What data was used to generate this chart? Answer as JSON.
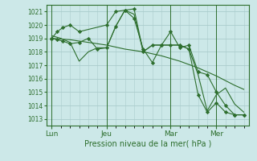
{
  "bg_color": "#cce8e8",
  "grid_color": "#aacccc",
  "line_color": "#2d6e2d",
  "marker_color": "#2d6e2d",
  "xlabel_text": "Pression niveau de la mer( hPa )",
  "ylim": [
    1012.5,
    1021.5
  ],
  "yticks": [
    1013,
    1014,
    1015,
    1016,
    1017,
    1018,
    1019,
    1020,
    1021
  ],
  "day_labels": [
    "Lun",
    "Jeu",
    "Mar",
    "Mer"
  ],
  "day_positions": [
    0.0,
    3.0,
    6.5,
    9.0
  ],
  "xlim": [
    -0.3,
    10.8
  ],
  "series": [
    {
      "x": [
        0.0,
        0.3,
        0.6,
        1.0,
        1.5,
        3.0,
        3.5,
        4.0,
        4.5,
        5.0,
        5.5,
        6.0,
        6.5,
        7.0,
        7.5,
        8.0,
        8.5,
        9.0,
        9.5,
        10.0,
        10.5
      ],
      "y": [
        1019.0,
        1019.5,
        1019.8,
        1020.0,
        1019.5,
        1020.0,
        1021.0,
        1021.1,
        1020.5,
        1018.2,
        1017.2,
        1018.5,
        1019.5,
        1018.3,
        1018.5,
        1016.5,
        1016.3,
        1015.0,
        1014.0,
        1013.3,
        1013.3
      ],
      "has_markers": true
    },
    {
      "x": [
        0.0,
        0.3,
        0.6,
        1.0,
        1.5,
        2.0,
        2.5,
        3.0,
        3.5,
        4.0,
        4.5,
        5.0,
        5.5,
        6.0,
        6.5,
        7.0,
        7.5,
        8.0,
        8.5,
        9.0,
        9.5,
        10.0,
        10.5
      ],
      "y": [
        1019.0,
        1018.9,
        1018.8,
        1018.6,
        1018.7,
        1019.0,
        1018.2,
        1018.3,
        1019.9,
        1021.1,
        1021.2,
        1018.0,
        1018.5,
        1018.5,
        1018.5,
        1018.5,
        1018.2,
        1014.8,
        1013.5,
        1014.2,
        1013.5,
        1013.3,
        1013.3
      ],
      "has_markers": true
    },
    {
      "x": [
        0.0,
        1.0,
        2.0,
        3.0,
        4.0,
        5.0,
        6.0,
        7.0,
        8.0,
        9.0,
        10.0,
        10.5
      ],
      "y": [
        1019.0,
        1018.9,
        1018.7,
        1018.5,
        1018.2,
        1018.0,
        1017.7,
        1017.3,
        1016.8,
        1016.2,
        1015.5,
        1015.2
      ],
      "has_markers": false
    },
    {
      "x": [
        0.0,
        0.5,
        1.0,
        1.5,
        2.0,
        2.5,
        3.0,
        3.5,
        4.0,
        4.5,
        5.0,
        5.5,
        6.0,
        6.5,
        7.0,
        7.5,
        8.0,
        8.5,
        9.0,
        9.5,
        10.0,
        10.5
      ],
      "y": [
        1019.2,
        1019.0,
        1018.7,
        1017.3,
        1018.0,
        1018.3,
        1018.3,
        1019.9,
        1021.1,
        1020.8,
        1018.0,
        1018.5,
        1018.5,
        1018.5,
        1018.5,
        1018.2,
        1016.3,
        1013.6,
        1014.8,
        1015.3,
        1014.1,
        1013.5
      ],
      "has_markers": false
    }
  ]
}
